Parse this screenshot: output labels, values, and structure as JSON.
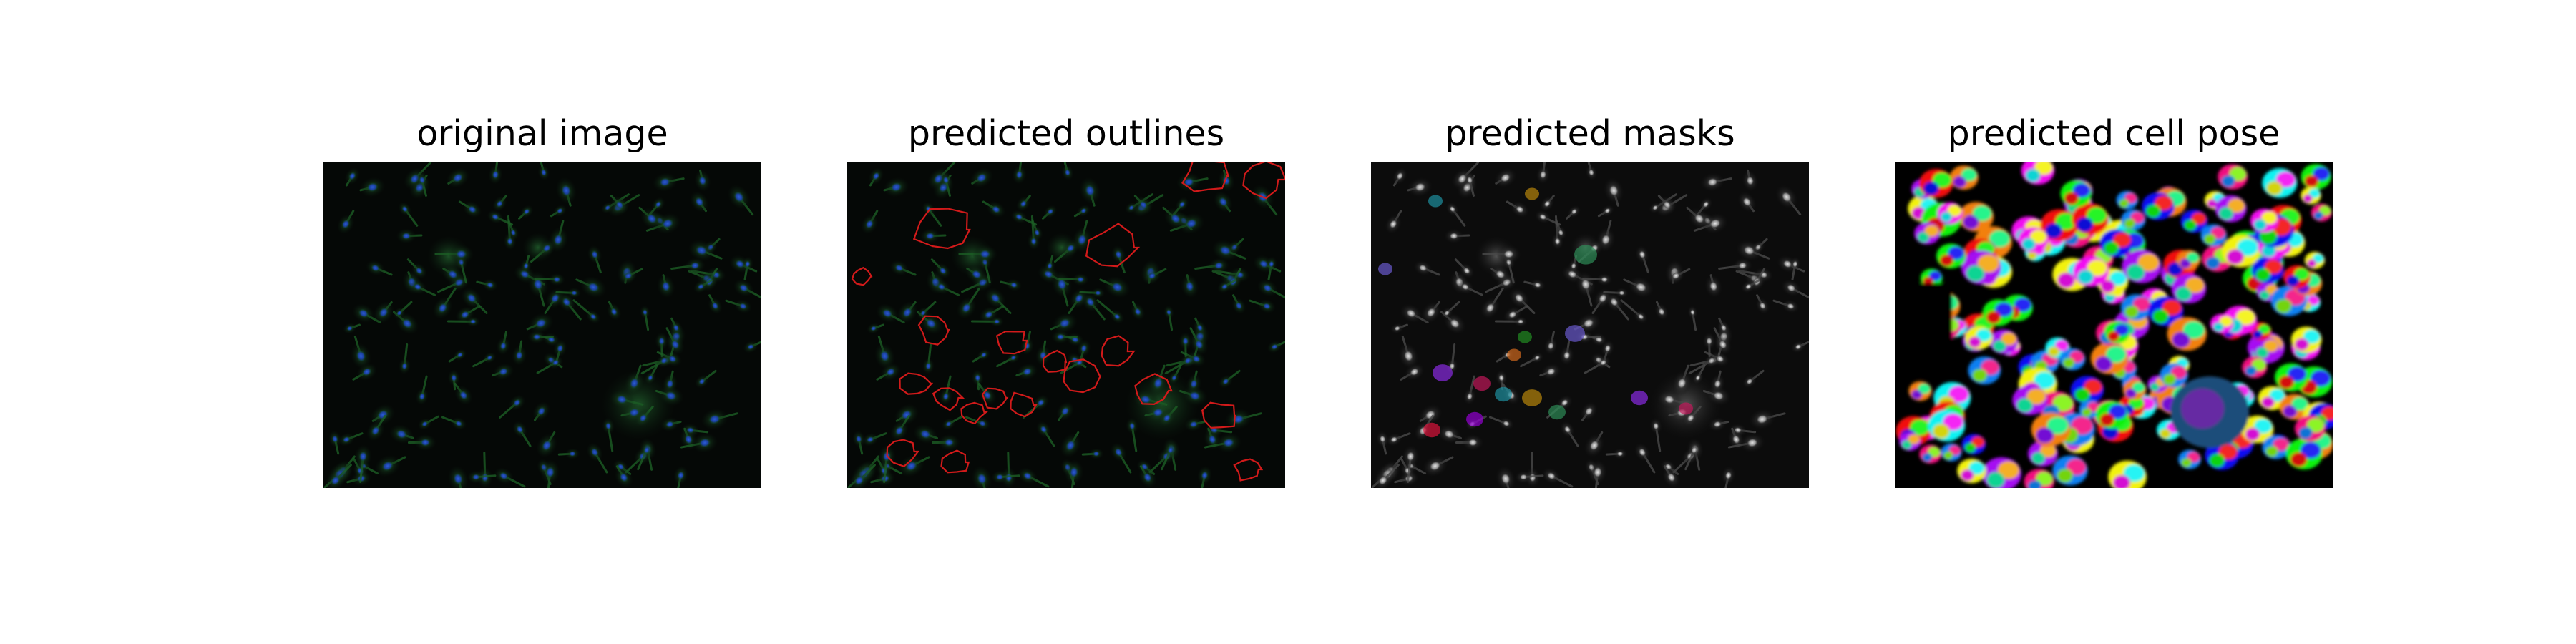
{
  "figure": {
    "panels": [
      {
        "title": "original image"
      },
      {
        "title": "predicted outlines"
      },
      {
        "title": "predicted masks"
      },
      {
        "title": "predicted cell pose"
      }
    ]
  }
}
